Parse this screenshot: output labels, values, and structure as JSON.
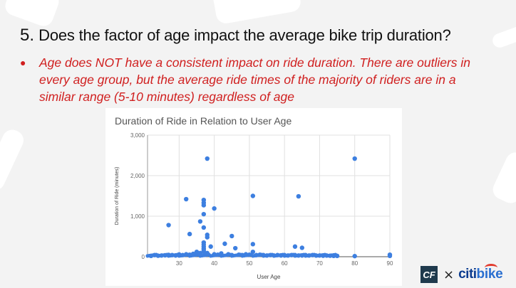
{
  "slide": {
    "heading_number": "5.",
    "heading_text": "Does the factor of age impact the average bike trip duration?",
    "bullet_text": "Age does NOT have a consistent impact on ride duration. There are outliers in every age group, but the average ride times of the majority of riders are in a similar range (5-10 minutes) regardless of age"
  },
  "logo": {
    "cf_text": "CF",
    "times_text": "×",
    "citi_text": "citi",
    "bike_text": "bike"
  },
  "colors": {
    "background": "#f3f3f3",
    "bullet_red": "#d01f1f",
    "point_blue": "#3d7fe0"
  },
  "chart_data": {
    "type": "scatter",
    "title": "Duration of Ride in Relation to User Age",
    "xlabel": "User Age",
    "ylabel": "Duration of Ride (minutes)",
    "xlim": [
      21,
      90
    ],
    "ylim": [
      0,
      3000
    ],
    "x_ticks": [
      "30",
      "40",
      "50",
      "60",
      "70",
      "80",
      "90"
    ],
    "y_ticks": [
      "0",
      "1,000",
      "2,000",
      "3,000"
    ],
    "grid": true,
    "series": [
      {
        "points": [
          [
            22,
            20
          ],
          [
            23,
            40
          ],
          [
            24,
            25
          ],
          [
            25,
            30
          ],
          [
            26,
            35
          ],
          [
            27,
            45
          ],
          [
            27,
            780
          ],
          [
            28,
            40
          ],
          [
            29,
            30
          ],
          [
            30,
            55
          ],
          [
            31,
            40
          ],
          [
            32,
            60
          ],
          [
            32,
            1420
          ],
          [
            33,
            50
          ],
          [
            33,
            560
          ],
          [
            34,
            70
          ],
          [
            35,
            120
          ],
          [
            36,
            90
          ],
          [
            36,
            870
          ],
          [
            37,
            1400
          ],
          [
            37,
            1330
          ],
          [
            37,
            1270
          ],
          [
            37,
            1050
          ],
          [
            37,
            720
          ],
          [
            37,
            350
          ],
          [
            37,
            300
          ],
          [
            37,
            250
          ],
          [
            37,
            200
          ],
          [
            37,
            160
          ],
          [
            37,
            120
          ],
          [
            38,
            2420
          ],
          [
            38,
            540
          ],
          [
            38,
            480
          ],
          [
            38,
            90
          ],
          [
            39,
            250
          ],
          [
            40,
            1190
          ],
          [
            40,
            60
          ],
          [
            41,
            50
          ],
          [
            42,
            80
          ],
          [
            43,
            320
          ],
          [
            44,
            60
          ],
          [
            45,
            510
          ],
          [
            45,
            40
          ],
          [
            46,
            210
          ],
          [
            47,
            50
          ],
          [
            48,
            40
          ],
          [
            49,
            60
          ],
          [
            50,
            50
          ],
          [
            51,
            1500
          ],
          [
            51,
            310
          ],
          [
            51,
            120
          ],
          [
            52,
            40
          ],
          [
            53,
            50
          ],
          [
            54,
            40
          ],
          [
            55,
            30
          ],
          [
            56,
            40
          ],
          [
            57,
            30
          ],
          [
            58,
            40
          ],
          [
            59,
            30
          ],
          [
            60,
            40
          ],
          [
            61,
            30
          ],
          [
            62,
            40
          ],
          [
            63,
            250
          ],
          [
            63,
            40
          ],
          [
            64,
            1490
          ],
          [
            64,
            30
          ],
          [
            65,
            220
          ],
          [
            65,
            30
          ],
          [
            66,
            40
          ],
          [
            67,
            30
          ],
          [
            68,
            40
          ],
          [
            69,
            30
          ],
          [
            70,
            30
          ],
          [
            71,
            25
          ],
          [
            72,
            30
          ],
          [
            73,
            25
          ],
          [
            74,
            20
          ],
          [
            75,
            20
          ],
          [
            80,
            2420
          ],
          [
            80,
            15
          ],
          [
            90,
            50
          ],
          [
            90,
            20
          ]
        ]
      }
    ]
  }
}
